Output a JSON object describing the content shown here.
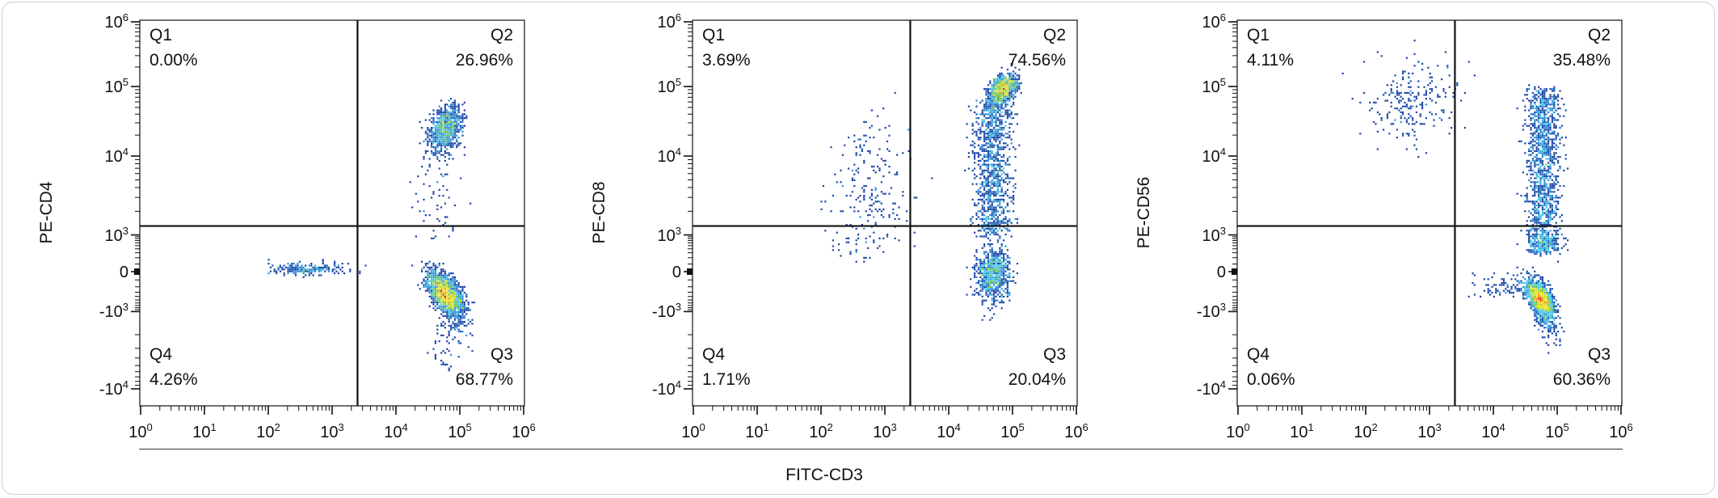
{
  "shared_xlabel": "FITC-CD3",
  "colors": {
    "axis": "#111111",
    "density": [
      "#1a47a6",
      "#2f8fd6",
      "#45c6e6",
      "#6ec046",
      "#c9e02c",
      "#f6e01e",
      "#f5921e",
      "#e5231f"
    ]
  },
  "chart_data": [
    {
      "type": "scatter",
      "subtype": "flow-cytometry-density",
      "xlabel": "FITC-CD3",
      "ylabel": "PE-CD4",
      "x_scale": "log",
      "xlim": [
        1,
        1000000
      ],
      "y_scale": "biexponential",
      "ylim": [
        -10000,
        1000000
      ],
      "gate": {
        "x": 2500,
        "y": 1300
      },
      "xticks": [
        {
          "base": "10",
          "exp": "0"
        },
        {
          "base": "10",
          "exp": "1"
        },
        {
          "base": "10",
          "exp": "2"
        },
        {
          "base": "10",
          "exp": "3"
        },
        {
          "base": "10",
          "exp": "4"
        },
        {
          "base": "10",
          "exp": "5"
        },
        {
          "base": "10",
          "exp": "6"
        }
      ],
      "yticks": [
        {
          "base": "10",
          "exp": "6"
        },
        {
          "base": "10",
          "exp": "5"
        },
        {
          "base": "10",
          "exp": "4"
        },
        {
          "base": "10",
          "exp": "3"
        },
        {
          "base": "0",
          "exp": ""
        },
        {
          "base": "-10",
          "exp": "3"
        },
        {
          "base": "-10",
          "exp": "4"
        }
      ],
      "quadrants": [
        {
          "name": "Q1",
          "percent": "0.00%"
        },
        {
          "name": "Q2",
          "percent": "26.96%"
        },
        {
          "name": "Q3",
          "percent": "68.77%"
        },
        {
          "name": "Q4",
          "percent": "4.26%"
        }
      ],
      "populations": [
        {
          "x": 60000,
          "y": 25000,
          "sx": 0.13,
          "sy": 0.16,
          "rho": 0.3,
          "n": 900
        },
        {
          "x": 60000,
          "y": -350,
          "sx": 0.14,
          "sy": 0.28,
          "rho": -0.6,
          "n": 2200
        },
        {
          "x": 400,
          "y": 30,
          "sx": 0.3,
          "sy": 0.08,
          "rho": 0,
          "n": 220
        },
        {
          "x": 45000,
          "y_range": [
            800,
            15000
          ],
          "sx": 0.2,
          "rho": 0,
          "n": 70
        },
        {
          "x": 60000,
          "y_range": [
            -6000,
            -1500
          ],
          "sx": 0.12,
          "rho": 0,
          "n": 40
        }
      ]
    },
    {
      "type": "scatter",
      "subtype": "flow-cytometry-density",
      "xlabel": "FITC-CD3",
      "ylabel": "PE-CD8",
      "x_scale": "log",
      "xlim": [
        1,
        1000000
      ],
      "y_scale": "biexponential",
      "ylim": [
        -10000,
        1000000
      ],
      "gate": {
        "x": 2500,
        "y": 1300
      },
      "xticks": [
        {
          "base": "10",
          "exp": "0"
        },
        {
          "base": "10",
          "exp": "1"
        },
        {
          "base": "10",
          "exp": "2"
        },
        {
          "base": "10",
          "exp": "3"
        },
        {
          "base": "10",
          "exp": "4"
        },
        {
          "base": "10",
          "exp": "5"
        },
        {
          "base": "10",
          "exp": "6"
        }
      ],
      "yticks": [
        {
          "base": "10",
          "exp": "6"
        },
        {
          "base": "10",
          "exp": "5"
        },
        {
          "base": "10",
          "exp": "4"
        },
        {
          "base": "10",
          "exp": "3"
        },
        {
          "base": "0",
          "exp": ""
        },
        {
          "base": "-10",
          "exp": "3"
        },
        {
          "base": "-10",
          "exp": "4"
        }
      ],
      "quadrants": [
        {
          "name": "Q1",
          "percent": "3.69%"
        },
        {
          "name": "Q2",
          "percent": "74.56%"
        },
        {
          "name": "Q3",
          "percent": "20.04%"
        },
        {
          "name": "Q4",
          "percent": "1.71%"
        }
      ],
      "populations": [
        {
          "x": 70000,
          "y": 90000,
          "sx": 0.11,
          "sy": 0.11,
          "rho": 0.4,
          "n": 1000
        },
        {
          "x": 50000,
          "y_range": [
            1000,
            60000
          ],
          "sx": 0.15,
          "rho": 0,
          "n": 1100
        },
        {
          "x": 50000,
          "y": -40,
          "sx": 0.13,
          "sy": 0.35,
          "rho": 0,
          "n": 800
        },
        {
          "x": 600,
          "y": 3000,
          "sx": 0.35,
          "sy": 0.55,
          "rho": 0,
          "n": 230
        }
      ]
    },
    {
      "type": "scatter",
      "subtype": "flow-cytometry-density",
      "xlabel": "FITC-CD3",
      "ylabel": "PE-CD56",
      "x_scale": "log",
      "xlim": [
        1,
        1000000
      ],
      "y_scale": "biexponential",
      "ylim": [
        -10000,
        1000000
      ],
      "gate": {
        "x": 2500,
        "y": 1300
      },
      "xticks": [
        {
          "base": "10",
          "exp": "0"
        },
        {
          "base": "10",
          "exp": "1"
        },
        {
          "base": "10",
          "exp": "2"
        },
        {
          "base": "10",
          "exp": "3"
        },
        {
          "base": "10",
          "exp": "4"
        },
        {
          "base": "10",
          "exp": "5"
        },
        {
          "base": "10",
          "exp": "6"
        }
      ],
      "yticks": [
        {
          "base": "10",
          "exp": "6"
        },
        {
          "base": "10",
          "exp": "5"
        },
        {
          "base": "10",
          "exp": "4"
        },
        {
          "base": "10",
          "exp": "3"
        },
        {
          "base": "0",
          "exp": ""
        },
        {
          "base": "-10",
          "exp": "3"
        },
        {
          "base": "-10",
          "exp": "4"
        }
      ],
      "quadrants": [
        {
          "name": "Q1",
          "percent": "4.11%"
        },
        {
          "name": "Q2",
          "percent": "35.48%"
        },
        {
          "name": "Q3",
          "percent": "60.36%"
        },
        {
          "name": "Q4",
          "percent": "0.06%"
        }
      ],
      "populations": [
        {
          "x": 55000,
          "y": -500,
          "sx": 0.11,
          "sy": 0.25,
          "rho": -0.6,
          "n": 1700
        },
        {
          "x": 60000,
          "y_range": [
            300,
            90000
          ],
          "sx": 0.13,
          "rho": 0,
          "n": 1500
        },
        {
          "x": 500,
          "y": 60000,
          "sx": 0.35,
          "sy": 0.3,
          "rho": 0,
          "n": 230
        },
        {
          "x": 20000,
          "y": -200,
          "sx": 0.3,
          "sy": 0.15,
          "rho": 0,
          "n": 120
        }
      ]
    }
  ]
}
